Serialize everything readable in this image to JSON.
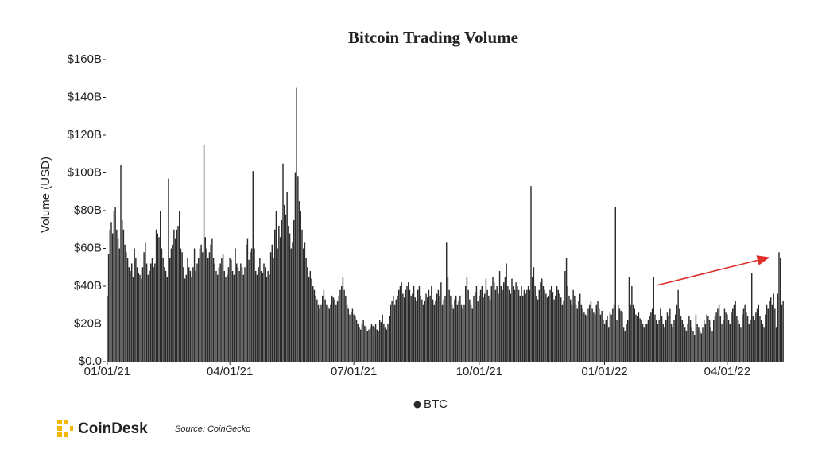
{
  "chart_data": {
    "type": "bar",
    "title": "Bitcoin Trading Volume",
    "ylabel": "Volume (USD)",
    "color": "#2b2b2b",
    "legend": "bottom",
    "series": [
      {
        "name": "BTC",
        "color": "#2b2b2b",
        "values": [
          35,
          57,
          70,
          74,
          68,
          80,
          82,
          70,
          65,
          60,
          104,
          75,
          70,
          62,
          58,
          55,
          50,
          48,
          52,
          45,
          60,
          55,
          50,
          47,
          46,
          44,
          50,
          58,
          63,
          52,
          46,
          48,
          52,
          55,
          50,
          52,
          70,
          68,
          66,
          80,
          60,
          55,
          50,
          48,
          45,
          97,
          55,
          60,
          62,
          70,
          65,
          70,
          72,
          80,
          60,
          58,
          50,
          44,
          46,
          55,
          50,
          48,
          45,
          50,
          60,
          48,
          52,
          55,
          60,
          62,
          58,
          115,
          66,
          60,
          55,
          58,
          62,
          65,
          55,
          52,
          48,
          46,
          50,
          52,
          55,
          57,
          48,
          45,
          46,
          50,
          55,
          54,
          48,
          46,
          60,
          52,
          50,
          48,
          52,
          50,
          46,
          50,
          62,
          65,
          54,
          58,
          60,
          101,
          60,
          48,
          46,
          50,
          55,
          48,
          47,
          52,
          50,
          45,
          48,
          46,
          58,
          62,
          55,
          70,
          80,
          60,
          72,
          66,
          75,
          105,
          83,
          78,
          90,
          72,
          68,
          60,
          63,
          75,
          100,
          145,
          98,
          85,
          80,
          70,
          60,
          63,
          55,
          50,
          45,
          48,
          44,
          40,
          38,
          35,
          33,
          30,
          28,
          30,
          35,
          38,
          33,
          30,
          29,
          28,
          30,
          35,
          34,
          33,
          30,
          32,
          35,
          38,
          40,
          45,
          38,
          35,
          30,
          28,
          25,
          26,
          28,
          25,
          24,
          22,
          20,
          18,
          17,
          20,
          22,
          19,
          18,
          16,
          17,
          18,
          20,
          19,
          18,
          20,
          17,
          16,
          22,
          21,
          25,
          20,
          18,
          17,
          20,
          24,
          30,
          32,
          35,
          30,
          33,
          35,
          38,
          40,
          42,
          36,
          34,
          38,
          40,
          42,
          38,
          35,
          36,
          40,
          34,
          32,
          38,
          40,
          35,
          33,
          30,
          32,
          36,
          34,
          38,
          35,
          40,
          33,
          30,
          32,
          36,
          38,
          35,
          42,
          30,
          33,
          35,
          63,
          45,
          38,
          35,
          30,
          28,
          33,
          35,
          30,
          32,
          35,
          30,
          28,
          30,
          40,
          45,
          38,
          33,
          30,
          28,
          35,
          37,
          40,
          32,
          35,
          38,
          40,
          34,
          36,
          44,
          38,
          35,
          33,
          40,
          45,
          42,
          38,
          40,
          36,
          48,
          40,
          38,
          42,
          45,
          52,
          40,
          38,
          36,
          44,
          40,
          38,
          42,
          40,
          38,
          35,
          40,
          35,
          38,
          36,
          38,
          40,
          38,
          93,
          45,
          50,
          40,
          35,
          33,
          38,
          42,
          44,
          40,
          38,
          36,
          34,
          35,
          38,
          40,
          37,
          33,
          35,
          40,
          38,
          36,
          34,
          30,
          32,
          48,
          55,
          40,
          35,
          33,
          30,
          38,
          35,
          30,
          28,
          32,
          36,
          30,
          28,
          26,
          25,
          24,
          28,
          30,
          32,
          28,
          26,
          25,
          30,
          32,
          28,
          25,
          27,
          22,
          20,
          22,
          24,
          18,
          26,
          25,
          28,
          30,
          82,
          22,
          30,
          28,
          27,
          26,
          18,
          16,
          20,
          22,
          45,
          30,
          40,
          30,
          28,
          25,
          24,
          26,
          23,
          22,
          20,
          18,
          20,
          20,
          22,
          24,
          26,
          28,
          45,
          25,
          22,
          20,
          22,
          28,
          24,
          20,
          18,
          22,
          26,
          24,
          28,
          20,
          18,
          22,
          25,
          30,
          38,
          28,
          24,
          22,
          20,
          18,
          16,
          20,
          24,
          22,
          18,
          16,
          14,
          25,
          20,
          18,
          16,
          15,
          18,
          22,
          20,
          25,
          24,
          22,
          18,
          16,
          22,
          24,
          26,
          28,
          30,
          24,
          20,
          22,
          28,
          26,
          25,
          22,
          20,
          26,
          28,
          30,
          32,
          24,
          22,
          20,
          18,
          25,
          28,
          30,
          26,
          24,
          20,
          22,
          47,
          24,
          22,
          26,
          28,
          30,
          24,
          22,
          20,
          18,
          25,
          30,
          28,
          32,
          34,
          30,
          36,
          28,
          18,
          36,
          58,
          55,
          30,
          32
        ]
      }
    ],
    "categories": [
      "01/01/21",
      "01/02/21",
      "01/03/21",
      "01/04/21",
      "01/05/21",
      "01/06/21",
      "01/07/21",
      "01/08/21",
      "01/09/21",
      "01/10/21",
      "01/11/21",
      "01/12/21",
      "01/13/21",
      "01/14/21",
      "01/15/21",
      "01/16/21",
      "01/17/21",
      "01/18/21",
      "01/19/21",
      "01/20/21",
      "01/21/21",
      "01/22/21",
      "01/23/21",
      "01/24/21",
      "01/25/21",
      "01/26/21",
      "01/27/21",
      "01/28/21",
      "01/29/21",
      "01/30/21",
      "01/31/21",
      "02/01/21",
      "02/02/21",
      "02/03/21",
      "02/04/21",
      "02/05/21",
      "02/06/21",
      "02/07/21",
      "02/08/21",
      "02/09/21",
      "02/10/21",
      "02/11/21",
      "02/12/21",
      "02/13/21",
      "02/14/21",
      "02/15/21",
      "02/16/21",
      "02/17/21",
      "02/18/21",
      "02/19/21",
      "02/20/21",
      "02/21/21",
      "02/22/21",
      "02/23/21",
      "02/24/21",
      "02/25/21",
      "02/26/21",
      "02/27/21",
      "02/28/21",
      "03/01/21",
      "03/02/21",
      "03/03/21",
      "03/04/21",
      "03/05/21",
      "03/06/21",
      "03/07/21",
      "03/08/21",
      "03/09/21",
      "03/10/21",
      "03/11/21",
      "03/12/21",
      "03/13/21",
      "03/14/21",
      "03/15/21",
      "03/16/21",
      "03/17/21",
      "03/18/21",
      "03/19/21",
      "03/20/21",
      "03/21/21",
      "03/22/21",
      "03/23/21",
      "03/24/21",
      "03/25/21",
      "03/26/21",
      "03/27/21",
      "03/28/21",
      "03/29/21",
      "03/30/21",
      "03/31/21",
      "04/01/21",
      "04/02/21",
      "04/03/21",
      "04/04/21",
      "04/05/21",
      "04/06/21",
      "04/07/21",
      "04/08/21",
      "04/09/21",
      "04/10/21",
      "04/11/21",
      "04/12/21",
      "04/13/21",
      "04/14/21",
      "04/15/21",
      "04/16/21",
      "04/17/21",
      "04/18/21",
      "04/19/21",
      "04/20/21",
      "04/21/21",
      "04/22/21",
      "04/23/21",
      "04/24/21",
      "04/25/21",
      "04/26/21",
      "04/27/21",
      "04/28/21",
      "04/29/21",
      "04/30/21",
      "05/01/21",
      "05/02/21",
      "05/03/21",
      "05/04/21",
      "05/05/21",
      "05/06/21",
      "05/07/21",
      "05/08/21",
      "05/09/21",
      "05/10/21",
      "05/11/21",
      "05/12/21",
      "05/13/21",
      "05/14/21",
      "05/15/21",
      "05/16/21",
      "05/17/21",
      "05/18/21",
      "05/19/21",
      "05/20/21",
      "05/21/21",
      "05/22/21",
      "05/23/21",
      "05/24/21",
      "05/25/21",
      "05/26/21",
      "05/27/21",
      "05/28/21",
      "05/29/21",
      "05/30/21",
      "05/31/21",
      "06/01/21",
      "06/02/21",
      "06/03/21",
      "06/04/21",
      "06/05/21",
      "06/06/21",
      "06/07/21",
      "06/08/21",
      "06/09/21",
      "06/10/21",
      "06/11/21",
      "06/12/21",
      "06/13/21",
      "06/14/21",
      "06/15/21",
      "06/16/21",
      "06/17/21",
      "06/18/21",
      "06/19/21",
      "06/20/21",
      "06/21/21",
      "06/22/21",
      "06/23/21",
      "06/24/21",
      "06/25/21",
      "06/26/21",
      "06/27/21",
      "06/28/21",
      "06/29/21",
      "06/30/21",
      "07/01/21",
      "07/02/21",
      "07/03/21",
      "07/04/21",
      "07/05/21",
      "07/06/21",
      "07/07/21",
      "07/08/21",
      "07/09/21",
      "07/10/21",
      "07/11/21",
      "07/12/21",
      "07/13/21",
      "07/14/21",
      "07/15/21",
      "07/16/21",
      "07/17/21",
      "07/18/21",
      "07/19/21",
      "07/20/21",
      "07/21/21",
      "07/22/21",
      "07/23/21",
      "07/24/21",
      "07/25/21",
      "07/26/21",
      "07/27/21",
      "07/28/21",
      "07/29/21",
      "07/30/21",
      "07/31/21",
      "08/01/21",
      "08/02/21",
      "08/03/21",
      "08/04/21",
      "08/05/21",
      "08/06/21",
      "08/07/21",
      "08/08/21",
      "08/09/21",
      "08/10/21",
      "08/11/21",
      "08/12/21",
      "08/13/21",
      "08/14/21",
      "08/15/21",
      "08/16/21",
      "08/17/21",
      "08/18/21",
      "08/19/21",
      "08/20/21",
      "08/21/21",
      "08/22/21",
      "08/23/21",
      "08/24/21",
      "08/25/21",
      "08/26/21",
      "08/27/21",
      "08/28/21",
      "08/29/21",
      "08/30/21",
      "08/31/21",
      "09/01/21",
      "09/02/21",
      "09/03/21",
      "09/04/21",
      "09/05/21",
      "09/06/21",
      "09/07/21",
      "09/08/21",
      "09/09/21",
      "09/10/21",
      "09/11/21",
      "09/12/21",
      "09/13/21",
      "09/14/21",
      "09/15/21",
      "09/16/21",
      "09/17/21",
      "09/18/21",
      "09/19/21",
      "09/20/21",
      "09/21/21",
      "09/22/21",
      "09/23/21",
      "09/24/21",
      "09/25/21",
      "09/26/21",
      "09/27/21",
      "09/28/21",
      "09/29/21",
      "09/30/21",
      "10/01/21",
      "10/02/21",
      "10/03/21",
      "10/04/21",
      "10/05/21",
      "10/06/21",
      "10/07/21",
      "10/08/21",
      "10/09/21",
      "10/10/21",
      "10/11/21",
      "10/12/21",
      "10/13/21",
      "10/14/21",
      "10/15/21",
      "10/16/21",
      "10/17/21",
      "10/18/21",
      "10/19/21",
      "10/20/21",
      "10/21/21",
      "10/22/21",
      "10/23/21",
      "10/24/21",
      "10/25/21",
      "10/26/21",
      "10/27/21",
      "10/28/21",
      "10/29/21",
      "10/30/21",
      "10/31/21",
      "11/01/21",
      "11/02/21",
      "11/03/21",
      "11/04/21",
      "11/05/21",
      "11/06/21",
      "11/07/21",
      "11/08/21",
      "11/09/21",
      "11/10/21",
      "11/11/21",
      "11/12/21",
      "11/13/21",
      "11/14/21",
      "11/15/21",
      "11/16/21",
      "11/17/21",
      "11/18/21",
      "11/19/21",
      "11/20/21",
      "11/21/21",
      "11/22/21",
      "11/23/21",
      "11/24/21",
      "11/25/21",
      "11/26/21",
      "11/27/21",
      "11/28/21",
      "11/29/21",
      "11/30/21",
      "12/01/21",
      "12/02/21",
      "12/03/21",
      "12/04/21",
      "12/05/21",
      "12/06/21",
      "12/07/21",
      "12/08/21",
      "12/09/21",
      "12/10/21",
      "12/11/21",
      "12/12/21",
      "12/13/21",
      "12/14/21",
      "12/15/21",
      "12/16/21",
      "12/17/21",
      "12/18/21",
      "12/19/21",
      "12/20/21",
      "12/21/21",
      "12/22/21",
      "12/23/21",
      "12/24/21",
      "12/25/21",
      "12/26/21",
      "12/27/21",
      "12/28/21",
      "12/29/21",
      "12/30/21",
      "12/31/21",
      "01/01/22",
      "01/02/22",
      "01/03/22",
      "01/04/22",
      "01/05/22",
      "01/06/22",
      "01/07/22",
      "01/08/22",
      "01/09/22",
      "01/10/22",
      "01/11/22",
      "01/12/22",
      "01/13/22",
      "01/14/22",
      "01/15/22",
      "01/16/22",
      "01/17/22",
      "01/18/22",
      "01/19/22",
      "01/20/22",
      "01/21/22",
      "01/22/22",
      "01/23/22",
      "01/24/22",
      "01/25/22",
      "01/26/22",
      "01/27/22",
      "01/28/22",
      "01/29/22",
      "01/30/22",
      "01/31/22",
      "02/01/22",
      "02/02/22",
      "02/03/22",
      "02/04/22",
      "02/05/22",
      "02/06/22",
      "02/07/22",
      "02/08/22",
      "02/09/22",
      "02/10/22",
      "02/11/22",
      "02/12/22",
      "02/13/22",
      "02/14/22",
      "02/15/22",
      "02/16/22",
      "02/17/22",
      "02/18/22",
      "02/19/22",
      "02/20/22",
      "02/21/22",
      "02/22/22",
      "02/23/22",
      "02/24/22",
      "02/25/22",
      "02/26/22",
      "02/27/22",
      "02/28/22",
      "03/01/22",
      "03/02/22",
      "03/03/22",
      "03/04/22",
      "03/05/22",
      "03/06/22",
      "03/07/22",
      "03/08/22",
      "03/09/22",
      "03/10/22",
      "03/11/22",
      "03/12/22",
      "03/13/22",
      "03/14/22",
      "03/15/22",
      "03/16/22",
      "03/17/22",
      "03/18/22",
      "03/19/22",
      "03/20/22",
      "03/21/22",
      "03/22/22",
      "03/23/22",
      "03/24/22",
      "03/25/22",
      "03/26/22",
      "03/27/22",
      "03/28/22",
      "03/29/22",
      "03/30/22",
      "03/31/22",
      "04/01/22",
      "04/02/22",
      "04/03/22",
      "04/04/22",
      "04/05/22",
      "04/06/22",
      "04/07/22",
      "04/08/22",
      "04/09/22",
      "04/10/22",
      "04/11/22",
      "04/12/22",
      "04/13/22",
      "04/14/22",
      "04/15/22",
      "04/16/22",
      "04/17/22",
      "04/18/22",
      "04/19/22",
      "04/20/22",
      "04/21/22",
      "04/22/22",
      "04/23/22",
      "04/24/22",
      "04/25/22",
      "04/26/22",
      "04/27/22",
      "04/28/22",
      "04/29/22",
      "04/30/22",
      "05/01/22",
      "05/02/22",
      "05/03/22",
      "05/04/22",
      "05/05/22",
      "05/06/22",
      "05/07/22",
      "05/08/22",
      "05/09/22",
      "05/10/22",
      "05/11/22",
      "05/12/22"
    ],
    "xticks": [
      "01/01/21",
      "04/01/21",
      "07/01/21",
      "10/01/21",
      "01/01/22",
      "04/01/22"
    ],
    "ylim": [
      0,
      160
    ],
    "yticks": [
      {
        "value": 0,
        "label": "$0.0"
      },
      {
        "value": 20,
        "label": "$20B"
      },
      {
        "value": 40,
        "label": "$40B"
      },
      {
        "value": 60,
        "label": "$60B"
      },
      {
        "value": 80,
        "label": "$80B"
      },
      {
        "value": 100,
        "label": "$100B"
      },
      {
        "value": 120,
        "label": "$120B"
      },
      {
        "value": 140,
        "label": "$140B"
      },
      {
        "value": 160,
        "label": "$160B"
      }
    ]
  },
  "footer": {
    "brand": "CoinDesk",
    "source": "Source: CoinGecko"
  }
}
